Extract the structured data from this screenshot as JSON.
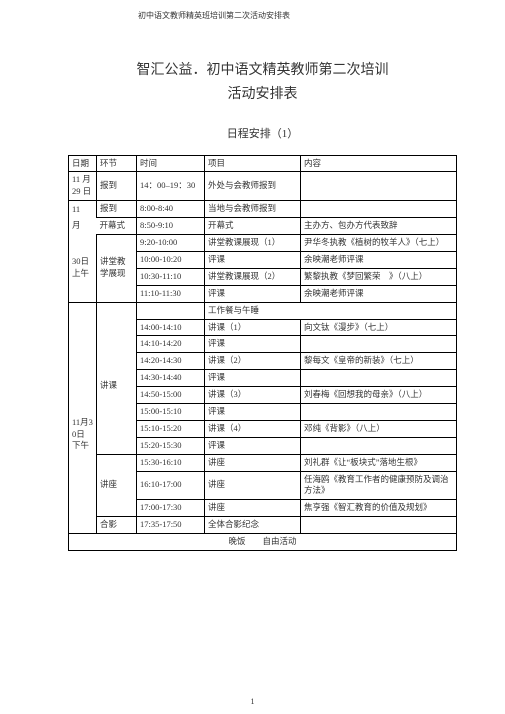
{
  "doc_header": "初中语文教师精英班培训第二次活动安排表",
  "title_line1": "智汇公益．初中语文精英教师第二次培训",
  "title_line2": "活动安排表",
  "subtitle": "日程安排（1）",
  "head": {
    "c1": "日期",
    "c2": "环节",
    "c3": "时间",
    "c4": "项目",
    "c5": "内容"
  },
  "r1": {
    "date": "11 月29 日",
    "seg": "报到",
    "time": "14：00–19：30",
    "proj": "外处与会教师报到",
    "cont": ""
  },
  "r2": {
    "date": "11",
    "seg": "报到",
    "time": "8:00-8:40",
    "proj": "当地与会教师报到",
    "cont": ""
  },
  "r3": {
    "date_a": "月",
    "date_b": "开幕式",
    "time": "8:50-9:10",
    "proj": "开幕式",
    "cont": "主办方、包办方代表致辞"
  },
  "r4": {
    "date": "30日上午",
    "seg": "讲堂教学展现",
    "time": "9:20-10:00",
    "proj": "讲堂教课展现（1）",
    "cont": "尹华冬执教《植树的牧羊人》（七上）"
  },
  "r5": {
    "time": "10:00-10:20",
    "proj": "评课",
    "cont": "余映潮老师评课"
  },
  "r6": {
    "time": "10:30-11:10",
    "proj": "讲堂教课展现（2）",
    "cont": "繁黎执教《梦回繁荣　》（八上）"
  },
  "r7": {
    "time": "11:10-11:30",
    "proj": "评课",
    "cont": "余映潮老师评课"
  },
  "lunch": "工作餐与午睡",
  "r8": {
    "time": "14:00-14:10",
    "proj": "讲课（1）",
    "cont": "向文钛《漫步》（七上）"
  },
  "r9": {
    "date": "11月30日下午",
    "time": "14:10-14:20",
    "proj": "评课",
    "cont": ""
  },
  "r10": {
    "seg": "讲课",
    "time": "14:20-14:30",
    "proj": "讲课（2）",
    "cont": "黎每文《皇帝的新装》（七上）"
  },
  "r11": {
    "time": "14:30-14:40",
    "proj": "评课",
    "cont": ""
  },
  "r12": {
    "time": "14:50-15:00",
    "proj": "讲课（3）",
    "cont": "刘春梅《回想我的母亲》（八上）"
  },
  "r13": {
    "time": "15:00-15:10",
    "proj": "评课",
    "cont": ""
  },
  "r14": {
    "time": "15:10-15:20",
    "proj": "讲课（4）",
    "cont": "邓纯《背影》（八上）"
  },
  "r15": {
    "time": "15:20-15:30",
    "proj": "评课",
    "cont": ""
  },
  "r16": {
    "time": "15:30-16:10",
    "proj": "讲座",
    "cont": "刘礼群《让“板块式”落地生根》"
  },
  "r17": {
    "seg": "讲座",
    "time": "16:10-17:00",
    "proj": "讲座",
    "cont": "任海鸥《教育工作者的健康预防及调治方法》"
  },
  "r18": {
    "time": "17:00-17:30",
    "proj": "讲座",
    "cont": "焦亨强《智汇教育的价值及规划》"
  },
  "r19": {
    "seg": "合影",
    "time": "17:35-17:50",
    "proj": "全体合影纪念",
    "cont": ""
  },
  "dinner": "晚饭　　自由活动",
  "page_number": "1"
}
